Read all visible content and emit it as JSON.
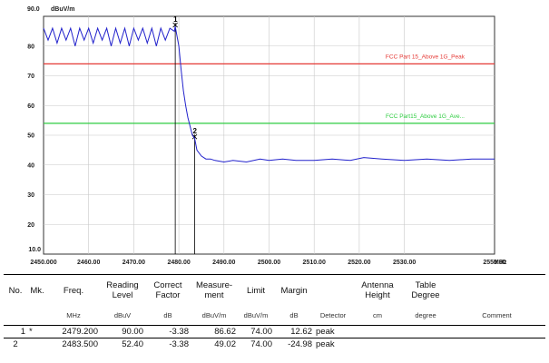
{
  "chart_data": {
    "type": "line",
    "y_unit_label": "dBuV/m",
    "x_unit_label": "MHz",
    "y_top_label": "90.0",
    "y_bottom_label": "10.0",
    "ylim": [
      10,
      90
    ],
    "xlim": [
      2450,
      2550
    ],
    "y_ticks": [
      20,
      30,
      40,
      50,
      60,
      70,
      80
    ],
    "x_ticks": [
      "2450.000",
      "2460.00",
      "2470.00",
      "2480.00",
      "2490.00",
      "2500.00",
      "2510.00",
      "2520.00",
      "2530.00",
      "2550.00"
    ],
    "x_tick_values": [
      2450,
      2460,
      2470,
      2480,
      2490,
      2500,
      2510,
      2520,
      2530,
      2550
    ],
    "grid": true,
    "limits": [
      {
        "name": "FCC Part 15_Above 1G_Peak",
        "value": 74,
        "color": "#e53935"
      },
      {
        "name": "FCC Part15_Above 1G_Ave...",
        "value": 54,
        "color": "#2ecc40"
      }
    ],
    "series": [
      {
        "color": "#2222cc",
        "x": [
          2450,
          2451,
          2452,
          2453,
          2454,
          2455,
          2456,
          2457,
          2458,
          2459,
          2460,
          2461,
          2462,
          2463,
          2464,
          2465,
          2466,
          2467,
          2468,
          2469,
          2470,
          2471,
          2472,
          2473,
          2474,
          2475,
          2476,
          2477,
          2478,
          2479,
          2479.2,
          2480,
          2480.5,
          2481,
          2481.5,
          2482,
          2482.5,
          2483,
          2483.5,
          2484,
          2485,
          2486,
          2487,
          2488,
          2490,
          2492,
          2495,
          2498,
          2500,
          2503,
          2506,
          2510,
          2514,
          2518,
          2521,
          2525,
          2530,
          2535,
          2540,
          2545,
          2550
        ],
        "y": [
          86,
          82,
          86,
          81,
          86,
          82,
          86,
          80,
          86,
          82,
          86,
          81,
          86,
          82,
          86,
          80,
          86,
          81,
          86,
          80,
          86,
          82,
          86,
          81,
          86,
          80,
          86,
          82,
          86,
          85,
          86.6,
          80,
          72,
          65,
          60,
          56,
          53,
          50,
          49,
          45,
          43,
          42,
          42,
          41.5,
          41,
          41.5,
          41,
          42,
          41.5,
          42,
          41.5,
          41.5,
          42,
          41.5,
          42.5,
          42,
          41.5,
          42,
          41.5,
          42,
          42
        ]
      }
    ],
    "markers": [
      {
        "label": "1",
        "x": 2479.2,
        "y": 86.62
      },
      {
        "label": "2",
        "x": 2483.5,
        "y": 49.02
      }
    ]
  },
  "table": {
    "headers": [
      "No.",
      "Mk.",
      "Freq.",
      "Reading Level",
      "Correct Factor",
      "Measure- ment",
      "Limit",
      "Margin",
      "",
      "Antenna Height",
      "Table Degree",
      ""
    ],
    "units": [
      "",
      "",
      "MHz",
      "dBuV",
      "dB",
      "dBuV/m",
      "dBuV/m",
      "dB",
      "Detector",
      "cm",
      "degree",
      "Comment"
    ],
    "rows": [
      {
        "no": "1",
        "mk": "*",
        "freq": "2479.200",
        "reading": "90.00",
        "factor": "-3.38",
        "measurement": "86.62",
        "limit": "74.00",
        "margin": "12.62",
        "detector": "peak",
        "height": "",
        "degree": "",
        "comment": ""
      },
      {
        "no": "2",
        "mk": "",
        "freq": "2483.500",
        "reading": "52.40",
        "factor": "-3.38",
        "measurement": "49.02",
        "limit": "74.00",
        "margin": "-24.98",
        "detector": "peak",
        "height": "",
        "degree": "",
        "comment": ""
      }
    ]
  }
}
